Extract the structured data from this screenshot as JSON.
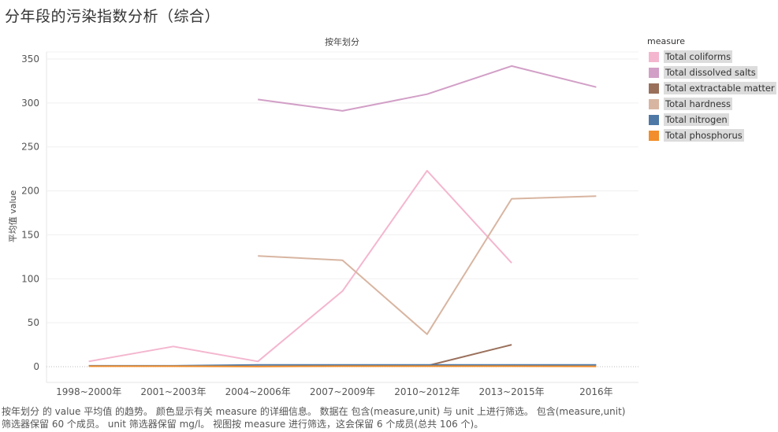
{
  "page_title": "分年段的污染指数分析（综合）",
  "caption": {
    "line1": "按年划分 的 value 平均值 的趋势。 颜色显示有关 measure 的详细信息。 数据在 包含(measure,unit) 与 unit 上进行筛选。 包含(measure,unit)",
    "line2": "筛选器保留 60 个成员。 unit 筛选器保留 mg/l。 视图按 measure 进行筛选，这会保留 6 个成员(总共 106 个)。"
  },
  "chart_data": {
    "type": "line",
    "title": "",
    "column_header": "按年划分",
    "xlabel": "",
    "ylabel": "平均值 value",
    "categories": [
      "1998~2000年",
      "2001~2003年",
      "2004~2006年",
      "2007~2009年",
      "2010~2012年",
      "2013~2015年",
      "2016年"
    ],
    "ylim": [
      -20,
      360
    ],
    "yticks": [
      0,
      50,
      100,
      150,
      200,
      250,
      300,
      350
    ],
    "grid": "horizontal",
    "legend_title": "measure",
    "legend_position": "right",
    "series": [
      {
        "name": "Total coliforms",
        "color": "#f4b6cf",
        "values": [
          6,
          23,
          6,
          86,
          223,
          118,
          null
        ]
      },
      {
        "name": "Total dissolved salts",
        "color": "#d29fc7",
        "values": [
          null,
          null,
          304,
          291,
          310,
          342,
          318
        ]
      },
      {
        "name": "Total extractable matter",
        "color": "#9a705b",
        "values": [
          null,
          null,
          null,
          null,
          1,
          25,
          null
        ]
      },
      {
        "name": "Total hardness",
        "color": "#d8b5a1",
        "values": [
          null,
          null,
          126,
          121,
          37,
          191,
          194
        ]
      },
      {
        "name": "Total nitrogen",
        "color": "#4e79a7",
        "values": [
          1,
          1,
          2,
          2,
          2,
          2,
          2
        ]
      },
      {
        "name": "Total phosphorus",
        "color": "#f28e2b",
        "values": [
          0.5,
          0.5,
          0.3,
          0.5,
          0.5,
          0.5,
          0.4
        ]
      }
    ]
  }
}
